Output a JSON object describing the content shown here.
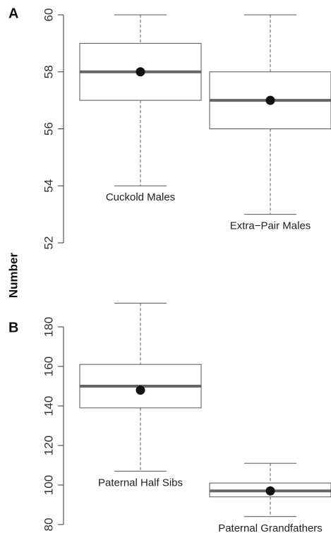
{
  "ylabel": "Number",
  "chart_data": [
    {
      "type": "box",
      "panel_label": "A",
      "categories": [
        "Cuckold Males",
        "Extra−Pair Males"
      ],
      "stats": [
        {
          "whisker_low": 54,
          "q1": 57,
          "median": 58,
          "q3": 59,
          "whisker_high": 60,
          "mean": 58
        },
        {
          "whisker_low": 53,
          "q1": 56,
          "median": 57,
          "q3": 58,
          "whisker_high": 60,
          "mean": 57
        }
      ],
      "ylim": [
        52,
        60
      ],
      "yticks": [
        52,
        54,
        56,
        58,
        60
      ]
    },
    {
      "type": "box",
      "panel_label": "B",
      "categories": [
        "Paternal Half Sibs",
        "Paternal Grandfathers"
      ],
      "stats": [
        {
          "whisker_low": 107,
          "q1": 139,
          "median": 150,
          "q3": 161,
          "whisker_high": 192,
          "mean": 148
        },
        {
          "whisker_low": 84,
          "q1": 94,
          "median": 97,
          "q3": 101,
          "whisker_high": 111,
          "mean": 97
        }
      ],
      "ylim": [
        80,
        180
      ],
      "yticks": [
        80,
        100,
        120,
        140,
        160,
        180
      ]
    }
  ]
}
